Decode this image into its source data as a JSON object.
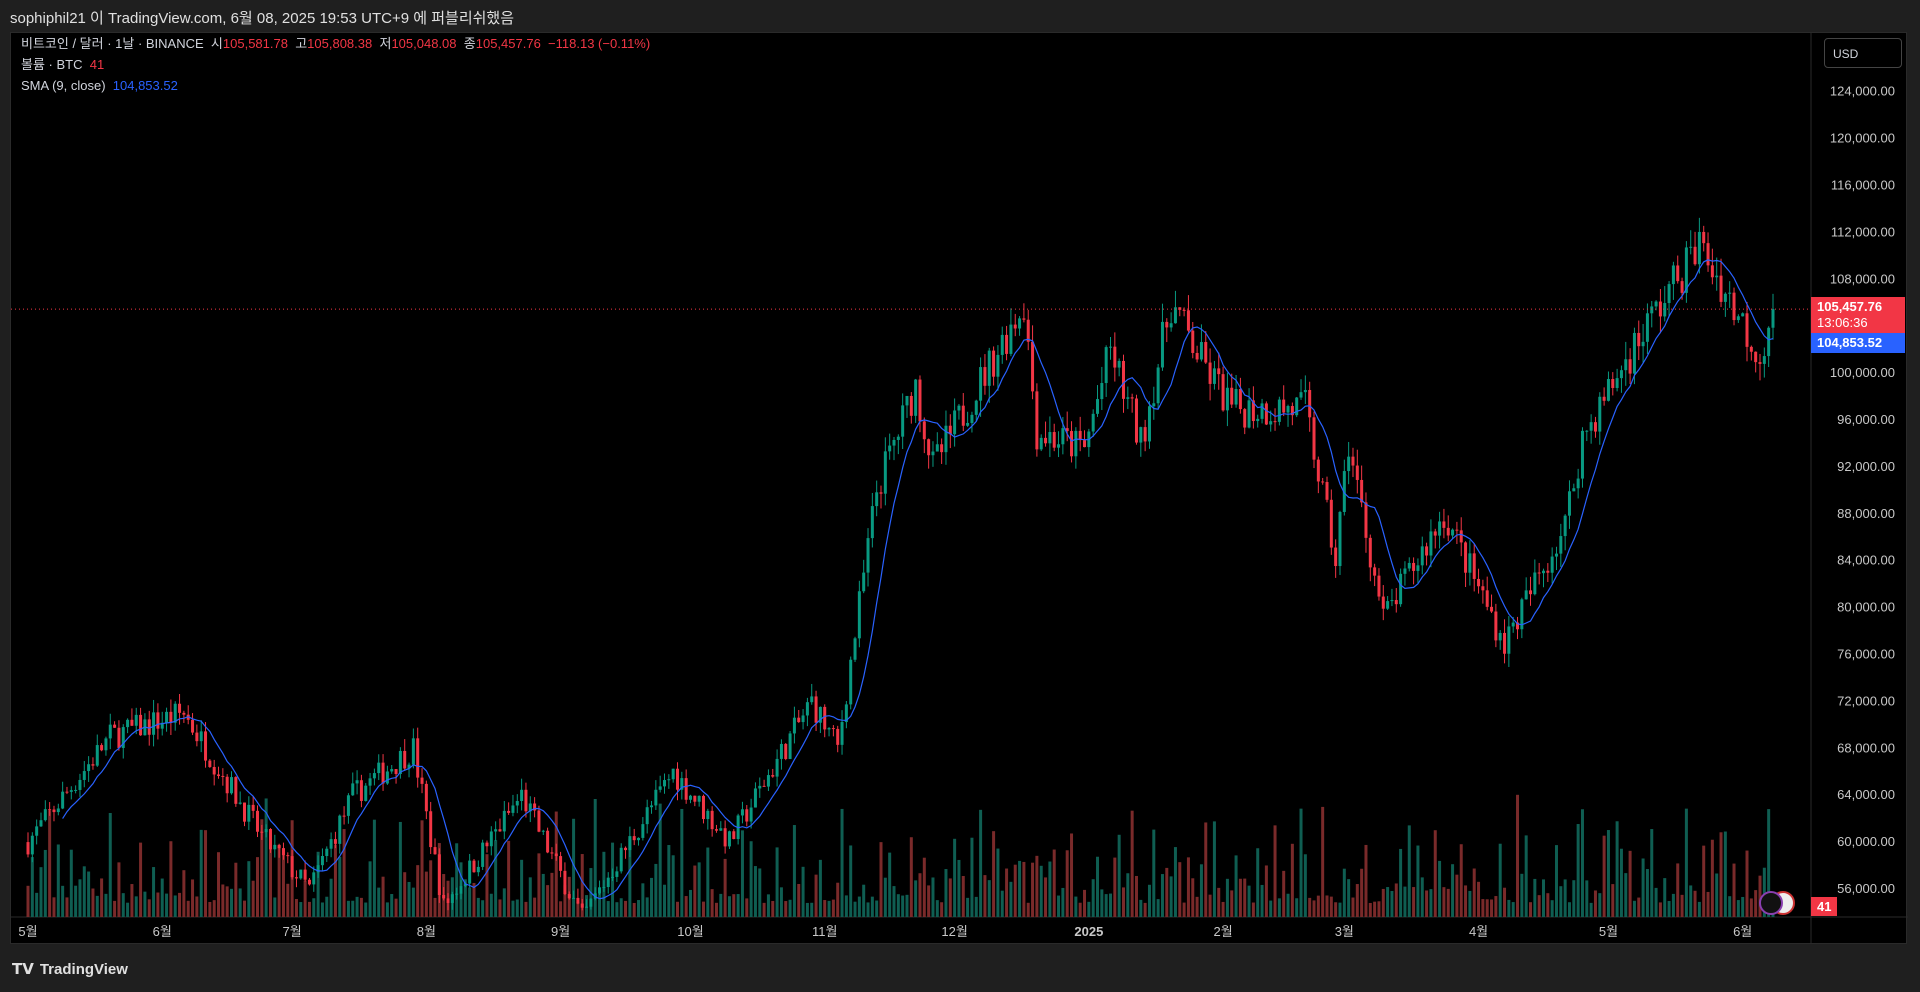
{
  "header": {
    "published_text": "sophiphil21 이 TradingView.com, 6월 08, 2025 19:53 UTC+9 에 퍼블리쉬했음"
  },
  "legend": {
    "symbol": "비트코인 / 달러 · 1날 · BINANCE",
    "o_label": "시",
    "o": "105,581.78",
    "h_label": "고",
    "h": "105,808.38",
    "l_label": "저",
    "l": "105,048.08",
    "c_label": "종",
    "c": "105,457.76",
    "change": "−118.13 (−0.11%)",
    "volume_label": "볼륨 · BTC",
    "volume": "41",
    "sma_label": "SMA (9, close)",
    "sma": "104,853.52"
  },
  "currency_button": "USD",
  "price_tags": {
    "last": "105,457.76",
    "countdown": "13:06:36",
    "sma": "104,853.52",
    "volume": "41"
  },
  "footer": {
    "logo": "TradingView"
  },
  "colors": {
    "up": "#089981",
    "down": "#f23645",
    "sma": "#2962ff",
    "vol_up": "#0f5e52",
    "vol_down": "#7a2a2a"
  },
  "chart_data": {
    "type": "candlestick",
    "start_date": "2024-05-01",
    "anchors": [
      [
        "2024-05-01",
        60000
      ],
      [
        "2024-05-20",
        69000
      ],
      [
        "2024-06-06",
        71000
      ],
      [
        "2024-06-24",
        60500
      ],
      [
        "2024-07-05",
        56000
      ],
      [
        "2024-07-15",
        64000
      ],
      [
        "2024-07-29",
        68000
      ],
      [
        "2024-08-05",
        54500
      ],
      [
        "2024-08-23",
        64000
      ],
      [
        "2024-09-06",
        53500
      ],
      [
        "2024-09-27",
        66000
      ],
      [
        "2024-10-10",
        60000
      ],
      [
        "2024-10-29",
        72000
      ],
      [
        "2024-11-04",
        68000
      ],
      [
        "2024-11-13",
        90000
      ],
      [
        "2024-11-22",
        99000
      ],
      [
        "2024-11-26",
        92000
      ],
      [
        "2024-12-05",
        98000
      ],
      [
        "2024-12-17",
        106000
      ],
      [
        "2024-12-20",
        95000
      ],
      [
        "2024-12-31",
        93500
      ],
      [
        "2025-01-06",
        102000
      ],
      [
        "2025-01-13",
        94000
      ],
      [
        "2025-01-20",
        106000
      ],
      [
        "2025-01-27",
        101000
      ],
      [
        "2025-02-03",
        97000
      ],
      [
        "2025-02-20",
        97000
      ],
      [
        "2025-02-27",
        84000
      ],
      [
        "2025-03-02",
        94000
      ],
      [
        "2025-03-10",
        79000
      ],
      [
        "2025-03-24",
        88000
      ],
      [
        "2025-04-07",
        77000
      ],
      [
        "2025-04-21",
        87000
      ],
      [
        "2025-04-25",
        94500
      ],
      [
        "2025-05-08",
        103000
      ],
      [
        "2025-05-22",
        111000
      ],
      [
        "2025-06-05",
        101500
      ],
      [
        "2025-06-08",
        105457.76
      ]
    ],
    "y_ticks": [
      124000,
      120000,
      116000,
      112000,
      108000,
      104000,
      100000,
      96000,
      92000,
      88000,
      84000,
      80000,
      76000,
      72000,
      68000,
      64000,
      60000,
      56000
    ],
    "y_tick_labels": [
      "124,000.00",
      "120,000.00",
      "116,000.00",
      "112,000.00",
      "108,000.00",
      "",
      "100,000.00",
      "96,000.00",
      "92,000.00",
      "88,000.00",
      "84,000.00",
      "80,000.00",
      "76,000.00",
      "72,000.00",
      "68,000.00",
      "64,000.00",
      "60,000.00",
      "56,000.00"
    ],
    "x_ticks": [
      [
        "2024-05-01",
        "5월"
      ],
      [
        "2024-06-01",
        "6월"
      ],
      [
        "2024-07-01",
        "7월"
      ],
      [
        "2024-08-01",
        "8월"
      ],
      [
        "2024-09-01",
        "9월"
      ],
      [
        "2024-10-01",
        "10월"
      ],
      [
        "2024-11-01",
        "11월"
      ],
      [
        "2024-12-01",
        "12월"
      ],
      [
        "2025-01-01",
        "2025"
      ],
      [
        "2025-02-01",
        "2월"
      ],
      [
        "2025-03-01",
        "3월"
      ],
      [
        "2025-04-01",
        "4월"
      ],
      [
        "2025-05-01",
        "5월"
      ],
      [
        "2025-06-01",
        "6월"
      ]
    ],
    "sma_period": 9,
    "last_price": 105457.76
  }
}
